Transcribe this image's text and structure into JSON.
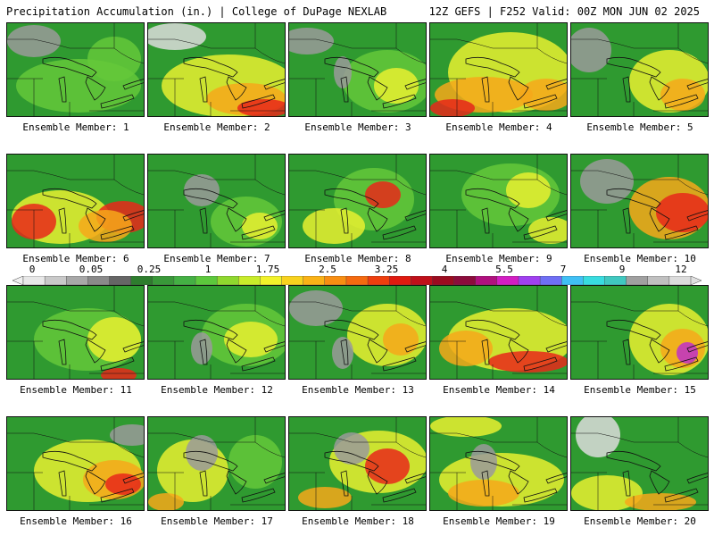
{
  "header": {
    "left": "Precipitation Accumulation (in.) | College of DuPage NEXLAB",
    "right": "12Z GEFS | F252 Valid: 00Z MON JUN 02 2025"
  },
  "panels": [
    {
      "label": "Ensemble Member: 1"
    },
    {
      "label": "Ensemble Member: 2"
    },
    {
      "label": "Ensemble Member: 3"
    },
    {
      "label": "Ensemble Member: 4"
    },
    {
      "label": "Ensemble Member: 5"
    },
    {
      "label": "Ensemble Member: 6"
    },
    {
      "label": "Ensemble Member: 7"
    },
    {
      "label": "Ensemble Member: 8"
    },
    {
      "label": "Ensemble Member: 9"
    },
    {
      "label": "Ensemble Member: 10"
    },
    {
      "label": "Ensemble Member: 11"
    },
    {
      "label": "Ensemble Member: 12"
    },
    {
      "label": "Ensemble Member: 13"
    },
    {
      "label": "Ensemble Member: 14"
    },
    {
      "label": "Ensemble Member: 15"
    },
    {
      "label": "Ensemble Member: 16"
    },
    {
      "label": "Ensemble Member: 17"
    },
    {
      "label": "Ensemble Member: 18"
    },
    {
      "label": "Ensemble Member: 19"
    },
    {
      "label": "Ensemble Member: 20"
    }
  ],
  "colorbar": {
    "labels": [
      "0",
      "0.05",
      "0.25",
      "1",
      "1.75",
      "2.5",
      "3.25",
      "4",
      "5.5",
      "7",
      "9",
      "12"
    ],
    "colors": [
      "#e8e8e8",
      "#c9c9c9",
      "#a8a8a8",
      "#8a8a8a",
      "#666666",
      "#2e7d2e",
      "#399839",
      "#44b044",
      "#5cc83c",
      "#8fd82e",
      "#c8ec2a",
      "#f2f22a",
      "#f8d21e",
      "#fab216",
      "#f88e12",
      "#f56a10",
      "#ee3e0e",
      "#e01a10",
      "#c0101a",
      "#9c0c20",
      "#8c0c3c",
      "#b0107e",
      "#d21ec2",
      "#a040f0",
      "#6f6ff5",
      "#40c0f5",
      "#38dce0",
      "#40c8c0",
      "#a0a0a0",
      "#c0c0c0",
      "#dcdcdc"
    ]
  }
}
